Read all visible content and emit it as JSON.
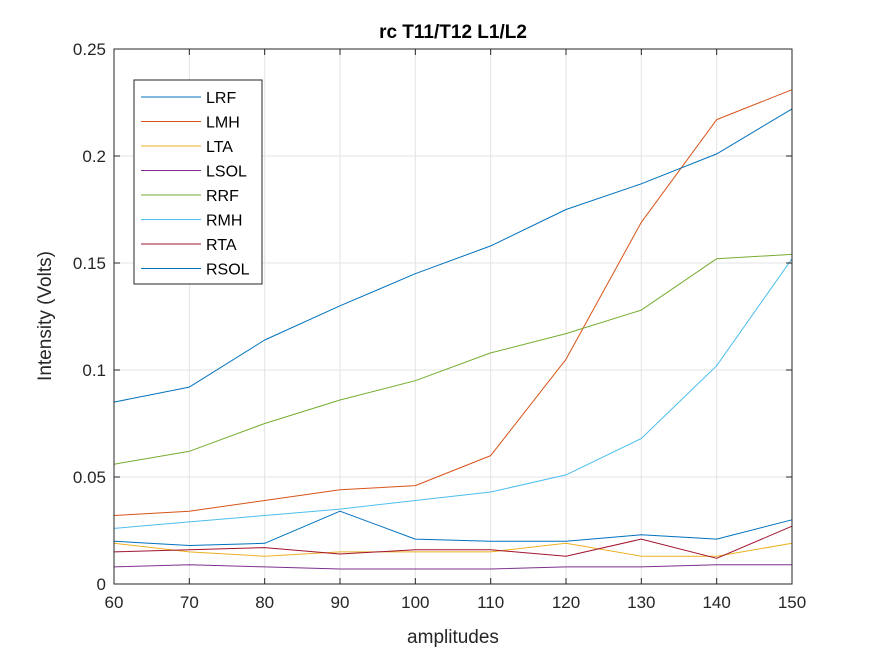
{
  "chart_data": {
    "type": "line",
    "title": "rc T11/T12 L1/L2",
    "xlabel": "amplitudes",
    "ylabel": "Intensity (Volts)",
    "xlim": [
      60,
      150
    ],
    "ylim": [
      0,
      0.25
    ],
    "xticks": [
      60,
      70,
      80,
      90,
      100,
      110,
      120,
      130,
      140,
      150
    ],
    "yticks": [
      0,
      0.05,
      0.1,
      0.15,
      0.2,
      0.25
    ],
    "xtick_labels": [
      "60",
      "70",
      "80",
      "90",
      "100",
      "110",
      "120",
      "130",
      "140",
      "150"
    ],
    "ytick_labels": [
      "0",
      "0.05",
      "0.1",
      "0.15",
      "0.2",
      "0.25"
    ],
    "grid": true,
    "legend_position": "top-left",
    "x": [
      60,
      70,
      80,
      90,
      100,
      110,
      120,
      130,
      140,
      150
    ],
    "series": [
      {
        "name": "LRF",
        "color": "#0072BD",
        "values": [
          0.02,
          0.018,
          0.019,
          0.034,
          0.021,
          0.02,
          0.02,
          0.023,
          0.021,
          0.03
        ]
      },
      {
        "name": "LMH",
        "color": "#D95319",
        "values": [
          0.032,
          0.034,
          0.039,
          0.044,
          0.046,
          0.06,
          0.105,
          0.169,
          0.217,
          0.231
        ]
      },
      {
        "name": "LTA",
        "color": "#EDB120",
        "values": [
          0.019,
          0.015,
          0.013,
          0.015,
          0.015,
          0.015,
          0.019,
          0.013,
          0.013,
          0.019
        ]
      },
      {
        "name": "LSOL",
        "color": "#7E2F8E",
        "values": [
          0.008,
          0.009,
          0.008,
          0.007,
          0.007,
          0.007,
          0.008,
          0.008,
          0.009,
          0.009
        ]
      },
      {
        "name": "RRF",
        "color": "#77AC30",
        "values": [
          0.056,
          0.062,
          0.075,
          0.086,
          0.095,
          0.108,
          0.117,
          0.128,
          0.152,
          0.154
        ]
      },
      {
        "name": "RMH",
        "color": "#4DBEEE",
        "values": [
          0.026,
          0.029,
          0.032,
          0.035,
          0.039,
          0.043,
          0.051,
          0.068,
          0.102,
          0.152
        ]
      },
      {
        "name": "RTA",
        "color": "#A2142F",
        "values": [
          0.015,
          0.016,
          0.017,
          0.014,
          0.016,
          0.016,
          0.013,
          0.021,
          0.012,
          0.027
        ]
      },
      {
        "name": "RSOL",
        "color": "#0072BD",
        "values": [
          0.085,
          0.092,
          0.114,
          0.13,
          0.145,
          0.158,
          0.175,
          0.187,
          0.201,
          0.222
        ]
      }
    ]
  }
}
